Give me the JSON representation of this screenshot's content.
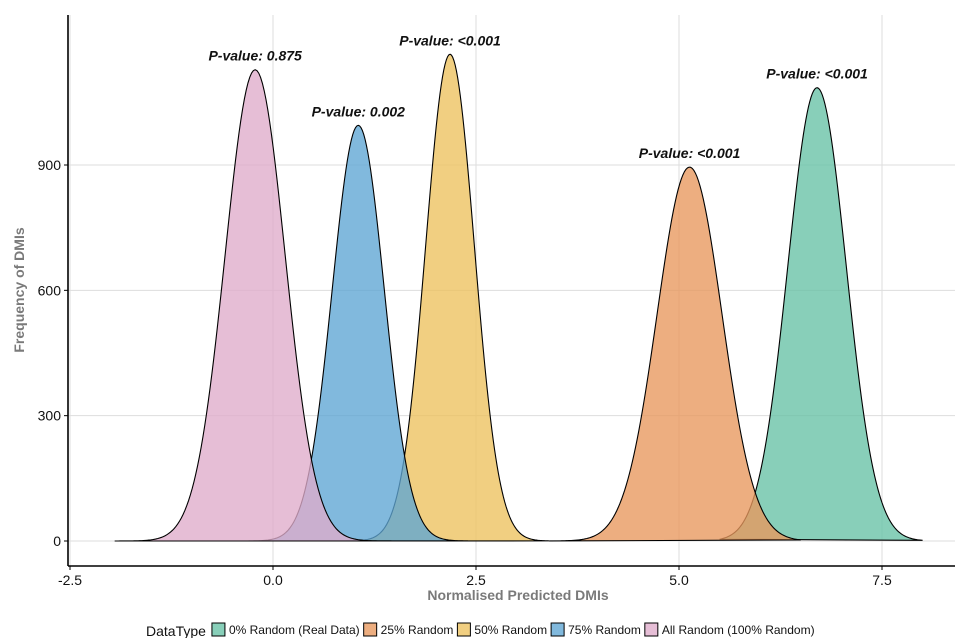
{
  "chart_data": {
    "type": "area",
    "title": "",
    "xlabel": "Normalised Predicted DMIs",
    "ylabel": "Frequency of DMIs",
    "xlim": [
      -2.5,
      8.3
    ],
    "ylim": [
      -60,
      1250
    ],
    "x_ticks": [
      -2.5,
      0.0,
      2.5,
      5.0,
      7.5
    ],
    "x_tick_labels": [
      "-2.5",
      "0.0",
      "2.5",
      "5.0",
      "7.5"
    ],
    "y_ticks": [
      0,
      300,
      600,
      900
    ],
    "y_tick_labels": [
      "0",
      "300",
      "600",
      "900"
    ],
    "grid": true,
    "legend_position": "bottom",
    "legend_title": "DataType",
    "series": [
      {
        "name": "0% Random (Real Data)",
        "color": "#66c2a5",
        "mean": 6.7,
        "sd": 0.36,
        "peak": 1085,
        "x_range": [
          5.5,
          8.0
        ],
        "annotation": "P-value: <0.001"
      },
      {
        "name": "25% Random",
        "color": "#e8975c",
        "mean": 5.13,
        "sd": 0.4,
        "peak": 895,
        "x_range": [
          3.4,
          6.5
        ],
        "annotation": "P-value: <0.001"
      },
      {
        "name": "50% Random",
        "color": "#edc25e",
        "mean": 2.18,
        "sd": 0.3,
        "peak": 1165,
        "x_range": [
          0.9,
          3.4
        ],
        "annotation": "P-value: <0.001"
      },
      {
        "name": "75% Random",
        "color": "#5ea5d4",
        "mean": 1.05,
        "sd": 0.32,
        "peak": 995,
        "x_range": [
          -0.3,
          2.4
        ],
        "annotation": "P-value: 0.002"
      },
      {
        "name": "All Random (100% Random)",
        "color": "#dfaccb",
        "mean": -0.22,
        "sd": 0.37,
        "peak": 1128,
        "x_range": [
          -1.95,
          1.6
        ],
        "annotation": "P-value: 0.875"
      }
    ]
  }
}
